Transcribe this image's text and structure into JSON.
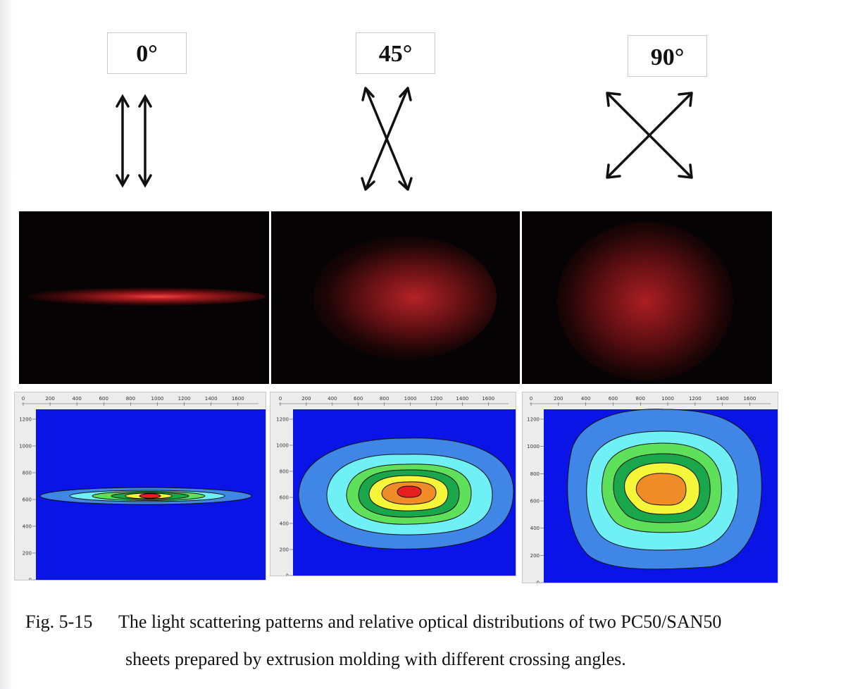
{
  "figure": {
    "panels": [
      {
        "id": "0",
        "angle_label": "0°"
      },
      {
        "id": "45",
        "angle_label": "45°"
      },
      {
        "id": "90",
        "angle_label": "90°"
      }
    ],
    "x_ticks": [
      "0",
      "200",
      "400",
      "600",
      "800",
      "1000",
      "1200",
      "1400",
      "1600"
    ],
    "y_ticks": [
      "1200",
      "1000",
      "800",
      "600",
      "400",
      "200",
      "0"
    ],
    "colors": {
      "background_blue": "#0a14e6",
      "levels": [
        "#3f86e6",
        "#6ff0f5",
        "#5fe05a",
        "#1aa64a",
        "#f5f53a",
        "#f08c28",
        "#e61e1e"
      ],
      "laser": "#e0282d"
    }
  },
  "caption": {
    "number": "Fig. 5-15",
    "line1": "The light scattering patterns and relative optical distributions of two PC50/SAN50",
    "line2": "sheets prepared by extrusion molding with different crossing angles."
  }
}
